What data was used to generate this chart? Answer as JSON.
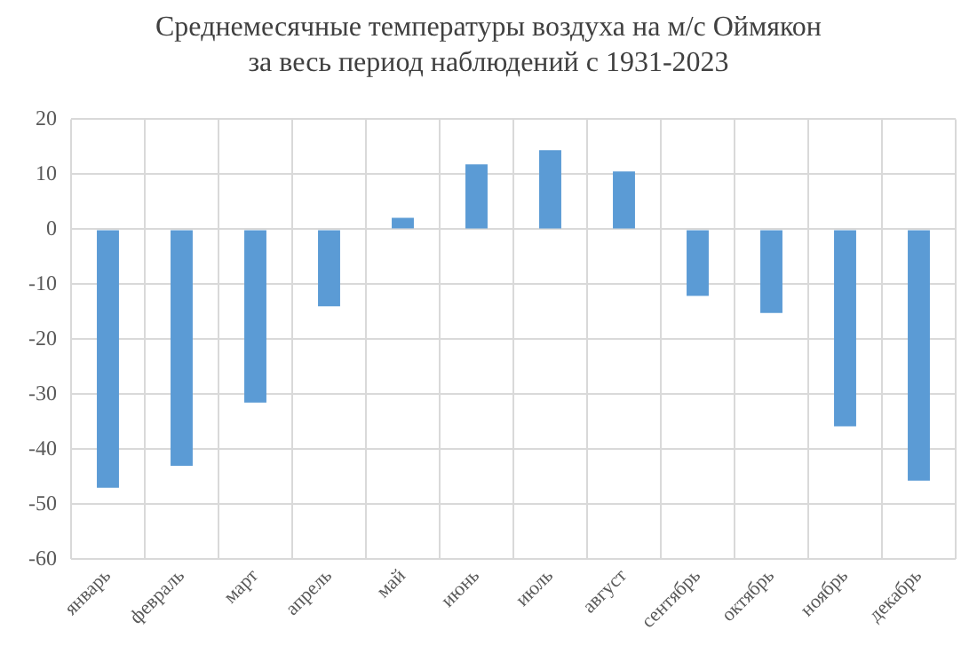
{
  "chart_data": {
    "type": "bar",
    "title": "Среднемесячные температуры воздуха на м/с Оймякон за весь период наблюдений с 1931-2023",
    "categories": [
      "январь",
      "февраль",
      "март",
      "апрель",
      "май",
      "июнь",
      "июль",
      "август",
      "сентябрь",
      "октябрь",
      "ноябрь",
      "декабрь"
    ],
    "values": [
      -47,
      -43,
      -31.5,
      -14,
      2.1,
      11.8,
      14.4,
      10.5,
      -12.1,
      -15.2,
      -35.8,
      -45.7
    ],
    "color": "#5b9bd5",
    "ylim": [
      -60,
      20
    ],
    "yticks": [
      -60,
      -50,
      -40,
      -30,
      -20,
      -10,
      0,
      10,
      20
    ],
    "grid": true
  }
}
